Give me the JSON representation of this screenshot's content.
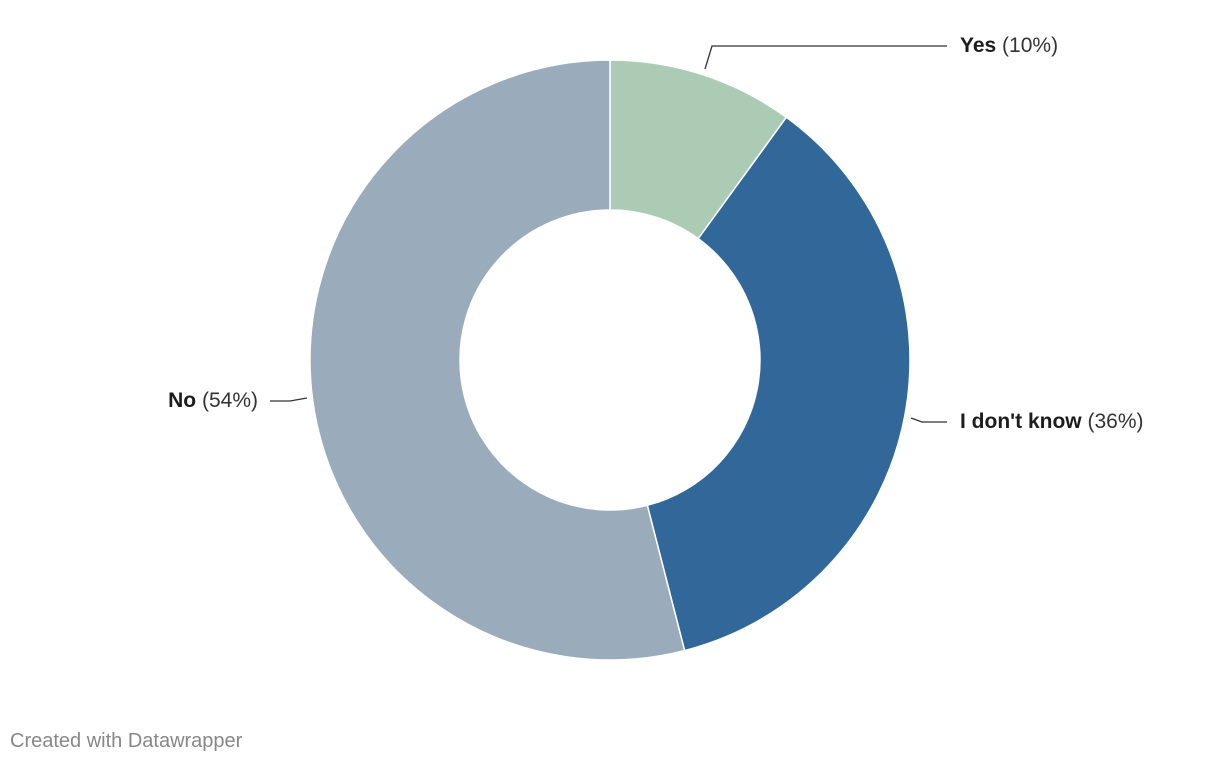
{
  "chart_data": {
    "type": "pie",
    "donut": true,
    "slices": [
      {
        "label": "Yes",
        "value": 10,
        "value_label": "(10%)",
        "color": "#abcbb4"
      },
      {
        "label": "I don't know",
        "value": 36,
        "value_label": "(36%)",
        "color": "#32679a"
      },
      {
        "label": "No",
        "value": 54,
        "value_label": "(54%)",
        "color": "#9aacbc"
      }
    ]
  },
  "footer": {
    "credit": "Created with Datawrapper"
  }
}
